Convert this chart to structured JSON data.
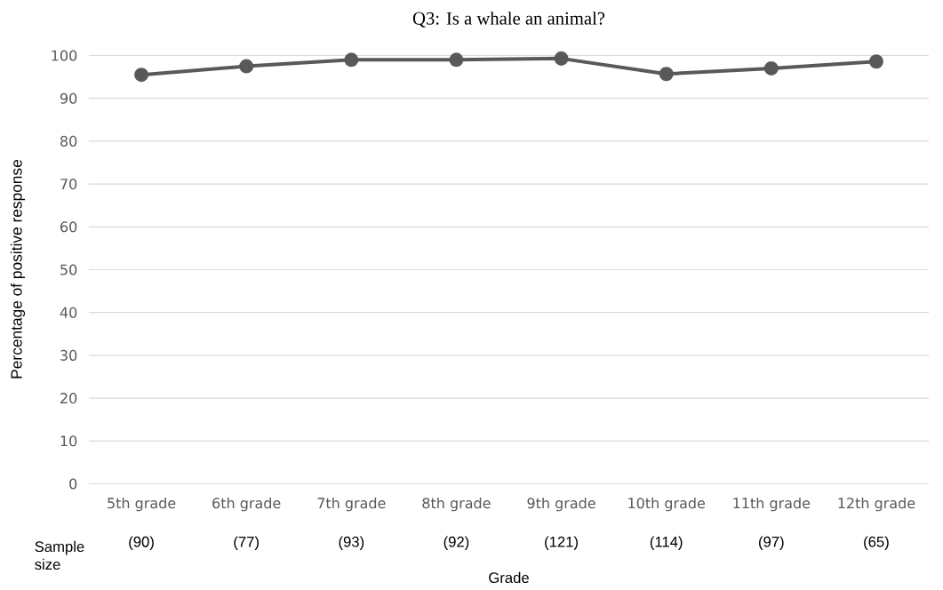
{
  "chart_data": {
    "type": "line",
    "title": "Q3: Is a whale an animal?",
    "xlabel": "Grade",
    "ylabel": "Percentage of positive response",
    "categories": [
      "5th grade",
      "6th grade",
      "7th grade",
      "8th grade",
      "9th grade",
      "10th grade",
      "11th grade",
      "12th grade"
    ],
    "series": [
      {
        "color": "#595959",
        "values": [
          95.5,
          97.5,
          99.0,
          99.0,
          99.3,
          95.7,
          97.0,
          98.6
        ]
      }
    ],
    "ylim": [
      0,
      100
    ],
    "yticks": [
      0,
      10,
      20,
      30,
      40,
      50,
      60,
      70,
      80,
      90,
      100
    ],
    "grid": "y",
    "marker": "circle",
    "line_style": "solid",
    "legend": false,
    "annotations": [
      "Sample size",
      "(90)",
      "(77)",
      "(93)",
      "(92)",
      "(121)",
      "(114)",
      "(97)",
      "(65)"
    ]
  }
}
